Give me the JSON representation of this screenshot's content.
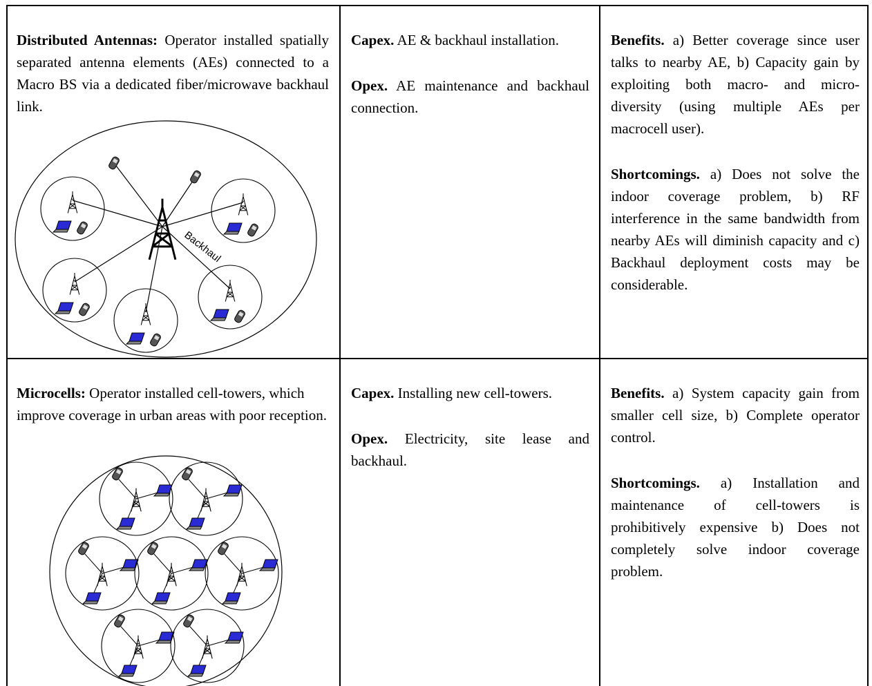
{
  "table": {
    "rows": [
      [
        {
          "heading": "Distributed Antennas:",
          "text": "Operator installed spatially separated antenna elements (AEs) connected to a Macro BS via a dedicated fiber/microwave backhaul link.",
          "diagram_label": "Backhaul"
        },
        {
          "paragraphs": [
            {
              "heading": "Capex.",
              "text": "AE & backhaul installation."
            },
            {
              "heading": "Opex.",
              "text": "AE maintenance and backhaul connection."
            }
          ]
        },
        {
          "paragraphs": [
            {
              "heading": "Benefits.",
              "text": "a) Better coverage since user talks to nearby AE, b) Capacity gain by exploiting both macro- and micro-diversity (using multiple AEs per macrocell user)."
            },
            {
              "heading": "Shortcomings.",
              "text": "a) Does not solve the indoor coverage problem, b) RF interference in the same bandwidth from nearby AEs will diminish capacity and c) Backhaul deployment costs may be considerable."
            }
          ]
        }
      ],
      [
        {
          "heading": "Microcells:",
          "text": "Operator installed cell-towers, which improve coverage in urban areas with poor reception."
        },
        {
          "paragraphs": [
            {
              "heading": "Capex.",
              "text": "Installing new cell-towers."
            },
            {
              "heading": "Opex.",
              "text": "Electricity, site lease and backhaul."
            }
          ]
        },
        {
          "paragraphs": [
            {
              "heading": "Benefits.",
              "text": "a) System capacity gain from smaller cell size, b) Complete operator control."
            },
            {
              "heading": "Shortcomings.",
              "text": "a) Installation and maintenance of cell-towers is prohibitively expensive b) Does not completely solve indoor coverage problem."
            }
          ]
        }
      ]
    ]
  }
}
